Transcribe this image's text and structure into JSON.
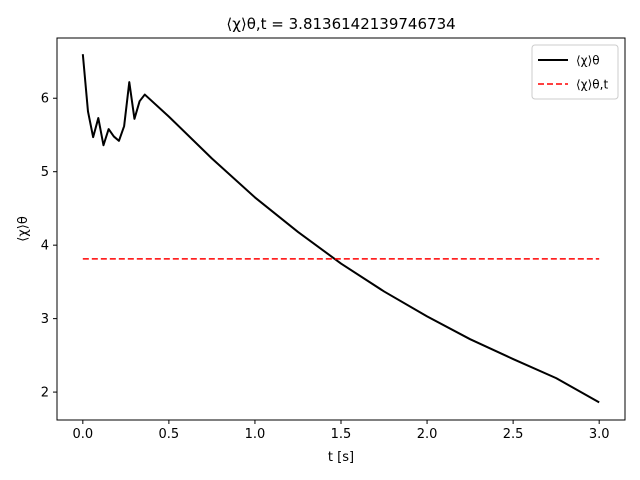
{
  "chart_data": {
    "type": "line",
    "title": "⟨χ⟩θ,t = 3.8136142139746734",
    "xlabel": "t [s]",
    "ylabel": "⟨χ⟩θ",
    "xlim": [
      -0.15,
      3.15
    ],
    "ylim": [
      1.62,
      6.82
    ],
    "xticks": [
      0.0,
      0.5,
      1.0,
      1.5,
      2.0,
      2.5,
      3.0
    ],
    "xtick_labels": [
      "0.0",
      "0.5",
      "1.0",
      "1.5",
      "2.0",
      "2.5",
      "3.0"
    ],
    "yticks": [
      2,
      3,
      4,
      5,
      6
    ],
    "ytick_labels": [
      "2",
      "3",
      "4",
      "5",
      "6"
    ],
    "grid": false,
    "legend_position": "top-right",
    "series": [
      {
        "name": "⟨χ⟩θ",
        "color": "#000000",
        "style": "solid",
        "x": [
          0.0,
          0.03,
          0.06,
          0.09,
          0.12,
          0.15,
          0.18,
          0.21,
          0.24,
          0.27,
          0.3,
          0.33,
          0.36,
          0.5,
          0.75,
          1.0,
          1.25,
          1.5,
          1.75,
          2.0,
          2.25,
          2.5,
          2.75,
          3.0
        ],
        "values": [
          6.6,
          5.82,
          5.47,
          5.73,
          5.36,
          5.58,
          5.48,
          5.42,
          5.62,
          6.22,
          5.72,
          5.96,
          6.05,
          5.75,
          5.18,
          4.65,
          4.18,
          3.75,
          3.37,
          3.03,
          2.72,
          2.45,
          2.19,
          1.86
        ]
      },
      {
        "name": "⟨χ⟩θ,t",
        "color": "#ff0000",
        "style": "dashed",
        "x": [
          0.0,
          3.0
        ],
        "values": [
          3.8136142139746734,
          3.8136142139746734
        ]
      }
    ]
  }
}
